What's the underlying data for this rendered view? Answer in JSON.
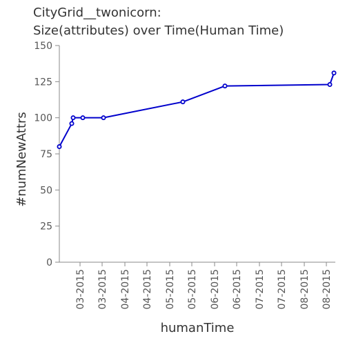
{
  "chart_data": {
    "type": "line",
    "title_lines": [
      "CityGrid__twonicorn:",
      "Size(attributes) over Time(Human Time)"
    ],
    "xlabel": "humanTime",
    "ylabel": "#numNewAttrs",
    "ylim": [
      0,
      150
    ],
    "yticks": [
      0,
      25,
      50,
      75,
      100,
      125,
      150
    ],
    "xlim": [
      0,
      400
    ],
    "xtick_positions": [
      30,
      62,
      95,
      127,
      160,
      192,
      225,
      257,
      290,
      322,
      355,
      387
    ],
    "xticks": [
      "03-2015",
      "03-2015",
      "04-2015",
      "04-2015",
      "05-2015",
      "05-2015",
      "06-2015",
      "06-2015",
      "07-2015",
      "07-2015",
      "08-2015",
      "08-2015"
    ],
    "grid": false,
    "color": "#0000cc",
    "series": [
      {
        "name": "",
        "x": [
          0,
          18,
          20,
          34,
          64,
          179,
          240,
          392,
          398
        ],
        "y": [
          80,
          96,
          100,
          100,
          100,
          111,
          122,
          123,
          131
        ]
      }
    ]
  }
}
